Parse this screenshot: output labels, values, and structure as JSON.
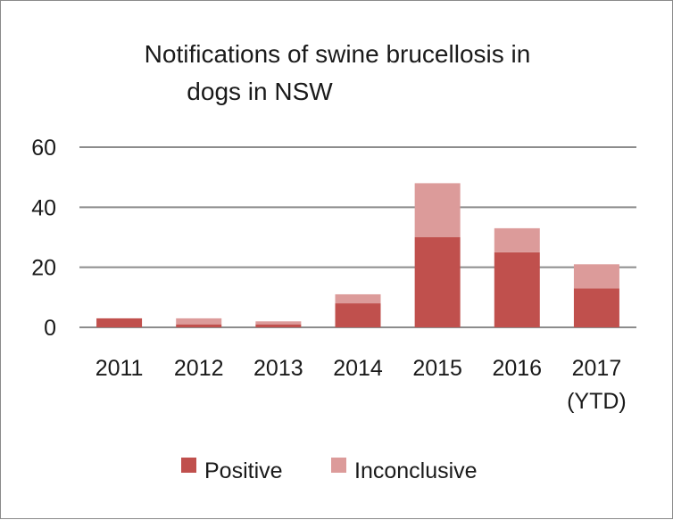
{
  "chart_data": {
    "type": "bar",
    "stacked": true,
    "title": "Notifications of swine brucellosis in dogs in NSW",
    "title_lines": [
      "Notifications of swine brucellosis in",
      "dogs in NSW"
    ],
    "categories": [
      "2011",
      "2012",
      "2013",
      "2014",
      "2015",
      "2016",
      "2017 (YTD)"
    ],
    "category_lines": [
      [
        "2011"
      ],
      [
        "2012"
      ],
      [
        "2013"
      ],
      [
        "2014"
      ],
      [
        "2015"
      ],
      [
        "2016"
      ],
      [
        "2017",
        "(YTD)"
      ]
    ],
    "series": [
      {
        "name": "Positive",
        "color": "#c0504d",
        "values": [
          3,
          1,
          1,
          8,
          30,
          25,
          13
        ]
      },
      {
        "name": "Inconclusive",
        "color": "#dc9b9a",
        "values": [
          0,
          2,
          1,
          3,
          18,
          8,
          8
        ]
      }
    ],
    "ylim": [
      0,
      60
    ],
    "yticks": [
      0,
      20,
      40,
      60
    ],
    "grid": true,
    "legend_position": "bottom",
    "xlabel": "",
    "ylabel": ""
  }
}
